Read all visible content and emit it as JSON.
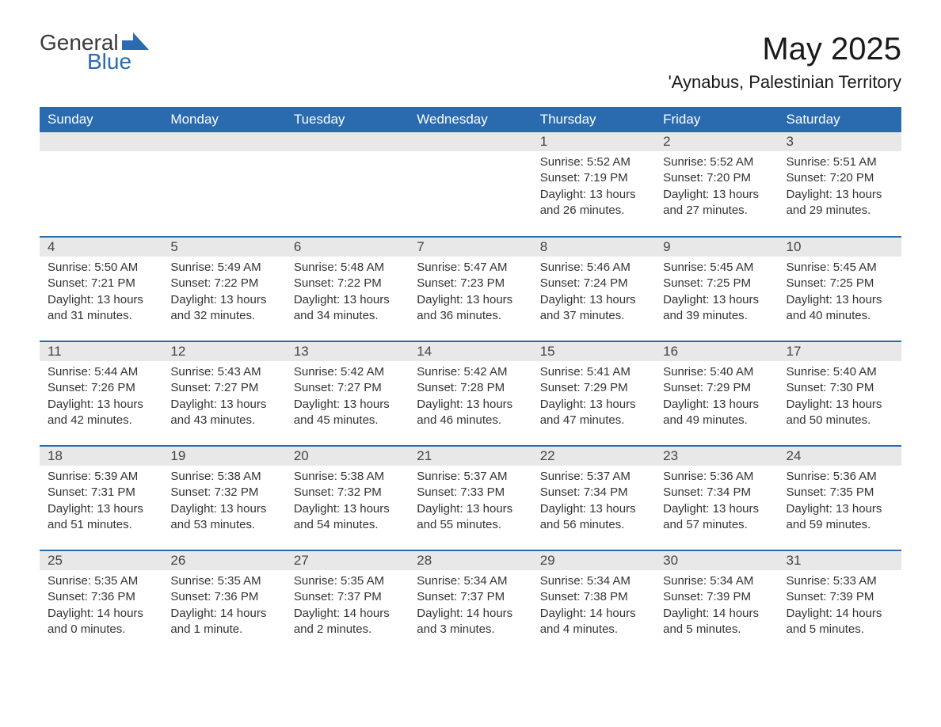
{
  "logo": {
    "text1": "General",
    "text2": "Blue"
  },
  "title": "May 2025",
  "location": "'Aynabus, Palestinian Territory",
  "colors": {
    "header_bg": "#2a6bb0",
    "header_text": "#ffffff",
    "daynum_bg": "#e8e8e8",
    "row_border": "#2a6bb0",
    "body_text": "#333333",
    "page_bg": "#ffffff"
  },
  "weekdays": [
    "Sunday",
    "Monday",
    "Tuesday",
    "Wednesday",
    "Thursday",
    "Friday",
    "Saturday"
  ],
  "weeks": [
    [
      {
        "n": "",
        "sunrise": "",
        "sunset": "",
        "daylight": ""
      },
      {
        "n": "",
        "sunrise": "",
        "sunset": "",
        "daylight": ""
      },
      {
        "n": "",
        "sunrise": "",
        "sunset": "",
        "daylight": ""
      },
      {
        "n": "",
        "sunrise": "",
        "sunset": "",
        "daylight": ""
      },
      {
        "n": "1",
        "sunrise": "Sunrise: 5:52 AM",
        "sunset": "Sunset: 7:19 PM",
        "daylight": "Daylight: 13 hours and 26 minutes."
      },
      {
        "n": "2",
        "sunrise": "Sunrise: 5:52 AM",
        "sunset": "Sunset: 7:20 PM",
        "daylight": "Daylight: 13 hours and 27 minutes."
      },
      {
        "n": "3",
        "sunrise": "Sunrise: 5:51 AM",
        "sunset": "Sunset: 7:20 PM",
        "daylight": "Daylight: 13 hours and 29 minutes."
      }
    ],
    [
      {
        "n": "4",
        "sunrise": "Sunrise: 5:50 AM",
        "sunset": "Sunset: 7:21 PM",
        "daylight": "Daylight: 13 hours and 31 minutes."
      },
      {
        "n": "5",
        "sunrise": "Sunrise: 5:49 AM",
        "sunset": "Sunset: 7:22 PM",
        "daylight": "Daylight: 13 hours and 32 minutes."
      },
      {
        "n": "6",
        "sunrise": "Sunrise: 5:48 AM",
        "sunset": "Sunset: 7:22 PM",
        "daylight": "Daylight: 13 hours and 34 minutes."
      },
      {
        "n": "7",
        "sunrise": "Sunrise: 5:47 AM",
        "sunset": "Sunset: 7:23 PM",
        "daylight": "Daylight: 13 hours and 36 minutes."
      },
      {
        "n": "8",
        "sunrise": "Sunrise: 5:46 AM",
        "sunset": "Sunset: 7:24 PM",
        "daylight": "Daylight: 13 hours and 37 minutes."
      },
      {
        "n": "9",
        "sunrise": "Sunrise: 5:45 AM",
        "sunset": "Sunset: 7:25 PM",
        "daylight": "Daylight: 13 hours and 39 minutes."
      },
      {
        "n": "10",
        "sunrise": "Sunrise: 5:45 AM",
        "sunset": "Sunset: 7:25 PM",
        "daylight": "Daylight: 13 hours and 40 minutes."
      }
    ],
    [
      {
        "n": "11",
        "sunrise": "Sunrise: 5:44 AM",
        "sunset": "Sunset: 7:26 PM",
        "daylight": "Daylight: 13 hours and 42 minutes."
      },
      {
        "n": "12",
        "sunrise": "Sunrise: 5:43 AM",
        "sunset": "Sunset: 7:27 PM",
        "daylight": "Daylight: 13 hours and 43 minutes."
      },
      {
        "n": "13",
        "sunrise": "Sunrise: 5:42 AM",
        "sunset": "Sunset: 7:27 PM",
        "daylight": "Daylight: 13 hours and 45 minutes."
      },
      {
        "n": "14",
        "sunrise": "Sunrise: 5:42 AM",
        "sunset": "Sunset: 7:28 PM",
        "daylight": "Daylight: 13 hours and 46 minutes."
      },
      {
        "n": "15",
        "sunrise": "Sunrise: 5:41 AM",
        "sunset": "Sunset: 7:29 PM",
        "daylight": "Daylight: 13 hours and 47 minutes."
      },
      {
        "n": "16",
        "sunrise": "Sunrise: 5:40 AM",
        "sunset": "Sunset: 7:29 PM",
        "daylight": "Daylight: 13 hours and 49 minutes."
      },
      {
        "n": "17",
        "sunrise": "Sunrise: 5:40 AM",
        "sunset": "Sunset: 7:30 PM",
        "daylight": "Daylight: 13 hours and 50 minutes."
      }
    ],
    [
      {
        "n": "18",
        "sunrise": "Sunrise: 5:39 AM",
        "sunset": "Sunset: 7:31 PM",
        "daylight": "Daylight: 13 hours and 51 minutes."
      },
      {
        "n": "19",
        "sunrise": "Sunrise: 5:38 AM",
        "sunset": "Sunset: 7:32 PM",
        "daylight": "Daylight: 13 hours and 53 minutes."
      },
      {
        "n": "20",
        "sunrise": "Sunrise: 5:38 AM",
        "sunset": "Sunset: 7:32 PM",
        "daylight": "Daylight: 13 hours and 54 minutes."
      },
      {
        "n": "21",
        "sunrise": "Sunrise: 5:37 AM",
        "sunset": "Sunset: 7:33 PM",
        "daylight": "Daylight: 13 hours and 55 minutes."
      },
      {
        "n": "22",
        "sunrise": "Sunrise: 5:37 AM",
        "sunset": "Sunset: 7:34 PM",
        "daylight": "Daylight: 13 hours and 56 minutes."
      },
      {
        "n": "23",
        "sunrise": "Sunrise: 5:36 AM",
        "sunset": "Sunset: 7:34 PM",
        "daylight": "Daylight: 13 hours and 57 minutes."
      },
      {
        "n": "24",
        "sunrise": "Sunrise: 5:36 AM",
        "sunset": "Sunset: 7:35 PM",
        "daylight": "Daylight: 13 hours and 59 minutes."
      }
    ],
    [
      {
        "n": "25",
        "sunrise": "Sunrise: 5:35 AM",
        "sunset": "Sunset: 7:36 PM",
        "daylight": "Daylight: 14 hours and 0 minutes."
      },
      {
        "n": "26",
        "sunrise": "Sunrise: 5:35 AM",
        "sunset": "Sunset: 7:36 PM",
        "daylight": "Daylight: 14 hours and 1 minute."
      },
      {
        "n": "27",
        "sunrise": "Sunrise: 5:35 AM",
        "sunset": "Sunset: 7:37 PM",
        "daylight": "Daylight: 14 hours and 2 minutes."
      },
      {
        "n": "28",
        "sunrise": "Sunrise: 5:34 AM",
        "sunset": "Sunset: 7:37 PM",
        "daylight": "Daylight: 14 hours and 3 minutes."
      },
      {
        "n": "29",
        "sunrise": "Sunrise: 5:34 AM",
        "sunset": "Sunset: 7:38 PM",
        "daylight": "Daylight: 14 hours and 4 minutes."
      },
      {
        "n": "30",
        "sunrise": "Sunrise: 5:34 AM",
        "sunset": "Sunset: 7:39 PM",
        "daylight": "Daylight: 14 hours and 5 minutes."
      },
      {
        "n": "31",
        "sunrise": "Sunrise: 5:33 AM",
        "sunset": "Sunset: 7:39 PM",
        "daylight": "Daylight: 14 hours and 5 minutes."
      }
    ]
  ]
}
